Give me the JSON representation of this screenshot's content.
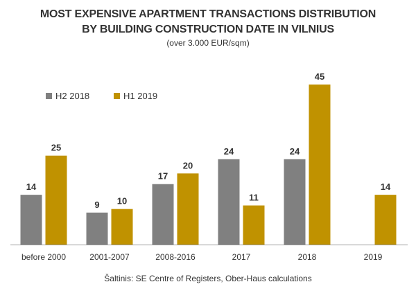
{
  "header": {
    "title_line1": "MOST EXPENSIVE APARTMENT TRANSACTIONS DISTRIBUTION",
    "title_line2": "BY BUILDING CONSTRUCTION DATE IN VILNIUS",
    "subtitle": "(over 3.000 EUR/sqm)"
  },
  "source": "Šaltinis: SE Centre of Registers, Ober-Haus calculations",
  "chart_data": {
    "type": "bar",
    "title": "MOST EXPENSIVE APARTMENT TRANSACTIONS DISTRIBUTION BY BUILDING CONSTRUCTION DATE IN VILNIUS",
    "subtitle": "(over 3.000 EUR/sqm)",
    "categories": [
      "before 2000",
      "2001-2007",
      "2008-2016",
      "2017",
      "2018",
      "2019"
    ],
    "series": [
      {
        "name": "H2 2018",
        "color": "#808080",
        "values": [
          14,
          9,
          17,
          24,
          24,
          null
        ]
      },
      {
        "name": "H1 2019",
        "color": "#C09200",
        "values": [
          25,
          10,
          20,
          11,
          45,
          14
        ]
      }
    ],
    "xlabel": "",
    "ylabel": "",
    "ylim": [
      0,
      45
    ],
    "grid": false,
    "legend": "top-left",
    "data_labels": true
  }
}
